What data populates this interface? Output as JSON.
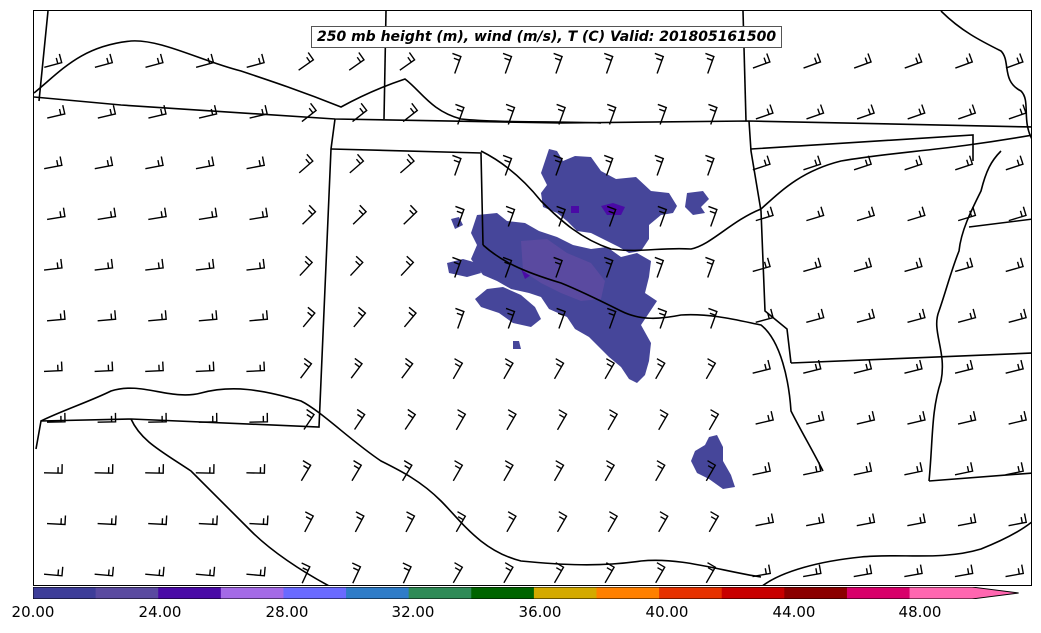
{
  "map": {
    "title": "250 mb height (m), wind (m/s), T (C) Valid: 201805161500"
  },
  "colorbar": {
    "tick_labels": [
      "20.00",
      "24.00",
      "28.00",
      "32.00",
      "36.00",
      "40.00",
      "44.00",
      "48.00"
    ],
    "colors": [
      "#3d3d99",
      "#5a4aa0",
      "#4a0aa6",
      "#a46ae6",
      "#6a6aff",
      "#2e7cc8",
      "#2e8b57",
      "#006400",
      "#d4aa00",
      "#ff8000",
      "#e63200",
      "#c80000",
      "#8b0000",
      "#d8006a",
      "#ff66b0"
    ]
  },
  "icons": {
    "wind_barb": "wind-barb-icon"
  }
}
